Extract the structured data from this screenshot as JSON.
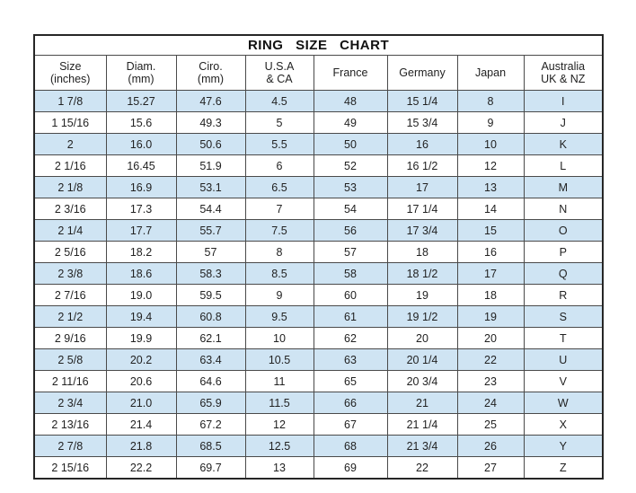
{
  "title": "RING  SIZE  CHART",
  "colors": {
    "row_highlight": "#cfe4f3",
    "row_plain": "#ffffff",
    "inner_border": "#4a4a4a",
    "outer_border": "#262626",
    "text": "#222222"
  },
  "table": {
    "headers": [
      {
        "key": "size-inches",
        "lines": [
          "Size",
          "(inches)"
        ]
      },
      {
        "key": "diameter-mm",
        "lines": [
          "Diam.",
          "(mm)"
        ]
      },
      {
        "key": "circumference-mm",
        "lines": [
          "Ciro.",
          "(mm)"
        ]
      },
      {
        "key": "usa-ca",
        "lines": [
          "U.S.A",
          "& CA"
        ]
      },
      {
        "key": "france",
        "lines": [
          "France"
        ]
      },
      {
        "key": "germany",
        "lines": [
          "Germany"
        ]
      },
      {
        "key": "japan",
        "lines": [
          "Japan"
        ]
      },
      {
        "key": "australia-uk-nz",
        "lines": [
          "Australia",
          "UK & NZ"
        ]
      }
    ],
    "rows": [
      [
        "1 7/8",
        "15.27",
        "47.6",
        "4.5",
        "48",
        "15 1/4",
        "8",
        "I"
      ],
      [
        "1 15/16",
        "15.6",
        "49.3",
        "5",
        "49",
        "15 3/4",
        "9",
        "J"
      ],
      [
        "2",
        "16.0",
        "50.6",
        "5.5",
        "50",
        "16",
        "10",
        "K"
      ],
      [
        "2 1/16",
        "16.45",
        "51.9",
        "6",
        "52",
        "16 1/2",
        "12",
        "L"
      ],
      [
        "2 1/8",
        "16.9",
        "53.1",
        "6.5",
        "53",
        "17",
        "13",
        "M"
      ],
      [
        "2 3/16",
        "17.3",
        "54.4",
        "7",
        "54",
        "17 1/4",
        "14",
        "N"
      ],
      [
        "2 1/4",
        "17.7",
        "55.7",
        "7.5",
        "56",
        "17 3/4",
        "15",
        "O"
      ],
      [
        "2 5/16",
        "18.2",
        "57",
        "8",
        "57",
        "18",
        "16",
        "P"
      ],
      [
        "2 3/8",
        "18.6",
        "58.3",
        "8.5",
        "58",
        "18 1/2",
        "17",
        "Q"
      ],
      [
        "2 7/16",
        "19.0",
        "59.5",
        "9",
        "60",
        "19",
        "18",
        "R"
      ],
      [
        "2 1/2",
        "19.4",
        "60.8",
        "9.5",
        "61",
        "19 1/2",
        "19",
        "S"
      ],
      [
        "2 9/16",
        "19.9",
        "62.1",
        "10",
        "62",
        "20",
        "20",
        "T"
      ],
      [
        "2 5/8",
        "20.2",
        "63.4",
        "10.5",
        "63",
        "20 1/4",
        "22",
        "U"
      ],
      [
        "2 11/16",
        "20.6",
        "64.6",
        "11",
        "65",
        "20 3/4",
        "23",
        "V"
      ],
      [
        "2 3/4",
        "21.0",
        "65.9",
        "11.5",
        "66",
        "21",
        "24",
        "W"
      ],
      [
        "2 13/16",
        "21.4",
        "67.2",
        "12",
        "67",
        "21 1/4",
        "25",
        "X"
      ],
      [
        "2 7/8",
        "21.8",
        "68.5",
        "12.5",
        "68",
        "21 3/4",
        "26",
        "Y"
      ],
      [
        "2 15/16",
        "22.2",
        "69.7",
        "13",
        "69",
        "22",
        "27",
        "Z"
      ]
    ]
  }
}
